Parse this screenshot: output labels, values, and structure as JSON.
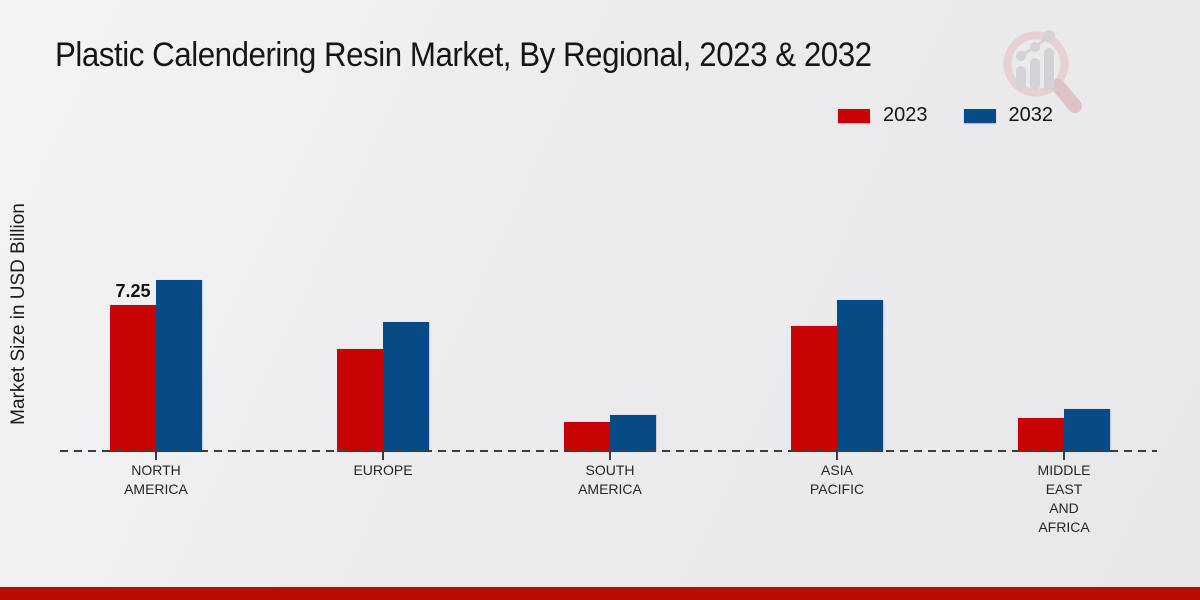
{
  "chart_data": {
    "type": "bar",
    "title": "Plastic Calendering Resin Market, By Regional, 2023 & 2032",
    "xlabel": "",
    "ylabel": "Market Size in USD Billion",
    "categories": [
      "NORTH AMERICA",
      "EUROPE",
      "SOUTH AMERICA",
      "ASIA PACIFIC",
      "MIDDLE EAST AND AFRICA"
    ],
    "series": [
      {
        "name": "2023",
        "color": "#c80303",
        "values": [
          7.25,
          5.1,
          1.5,
          6.2,
          1.7
        ]
      },
      {
        "name": "2032",
        "color": "#084a85",
        "values": [
          8.5,
          6.4,
          1.8,
          7.5,
          2.1
        ]
      }
    ],
    "data_labels": [
      [
        "7.25",
        null,
        null,
        null,
        null
      ],
      [
        null,
        null,
        null,
        null,
        null
      ]
    ],
    "ylim": [
      0,
      9
    ],
    "grid": false,
    "legend_position": "top-right",
    "baseline_style": "dashed",
    "axis_color": "#3c3c3c"
  },
  "branding": {
    "watermark_icon": "magnifying-glass-bar-chart-logo",
    "footer_bar_color": "#b80d00",
    "logo_ring_color": "#e8d0d3",
    "logo_handle_color": "#dfc2c6",
    "logo_bars_color": "#d2d3d6"
  }
}
